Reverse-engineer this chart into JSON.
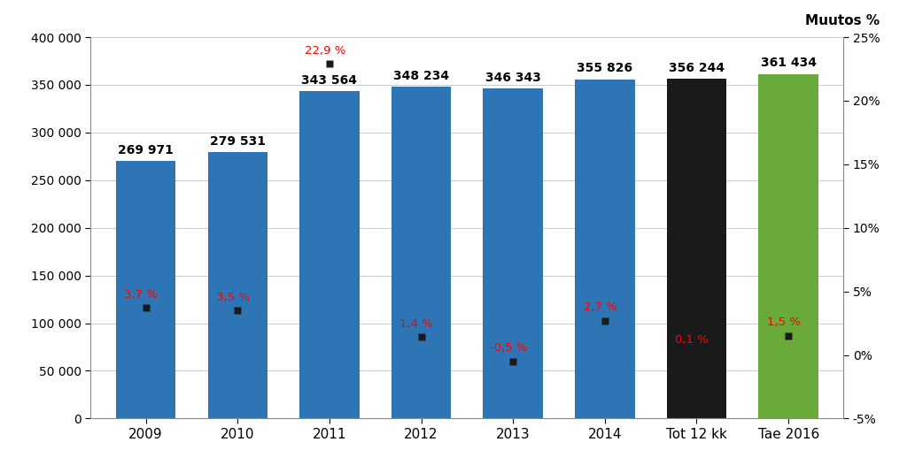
{
  "categories": [
    "2009",
    "2010",
    "2011",
    "2012",
    "2013",
    "2014",
    "Tot 12 kk",
    "Tae 2016"
  ],
  "bar_values": [
    269971,
    279531,
    343564,
    348234,
    346343,
    355826,
    356244,
    361434
  ],
  "bar_colors": [
    "#2E75B6",
    "#2E75B6",
    "#2E75B6",
    "#2E75B6",
    "#2E75B6",
    "#2E75B6",
    "#1a1a1a",
    "#6aaa3a"
  ],
  "bar_labels": [
    "269 971",
    "279 531",
    "343 564",
    "348 234",
    "346 343",
    "355 826",
    "356 244",
    "361 434"
  ],
  "pct_values": [
    3.7,
    3.5,
    22.9,
    1.4,
    -0.5,
    2.7,
    0.1,
    1.5
  ],
  "pct_labels": [
    "3,7 %",
    "3,5 %",
    "22,9 %",
    "1,4 %",
    "-0,5 %",
    "2,7 %",
    "0,1 %",
    "1,5 %"
  ],
  "left_ylim": [
    0,
    400000
  ],
  "right_ylim": [
    -5,
    25
  ],
  "left_yticks": [
    0,
    50000,
    100000,
    150000,
    200000,
    250000,
    300000,
    350000,
    400000
  ],
  "left_yticklabels": [
    "0",
    "50 000",
    "100 000",
    "150 000",
    "200 000",
    "250 000",
    "300 000",
    "350 000",
    "400 000"
  ],
  "right_yticks": [
    -5,
    0,
    5,
    10,
    15,
    20,
    25
  ],
  "right_yticklabels": [
    "-5%",
    "0%",
    "5%",
    "10%",
    "15%",
    "20%",
    "25%"
  ],
  "right_axis_title": "Muutos %",
  "marker_color": "#1a1a1a",
  "pct_text_color": "#FF0000",
  "bar_label_color": "#000000",
  "background_color": "#ffffff",
  "fig_width": 10.24,
  "fig_height": 5.26,
  "dpi": 100
}
